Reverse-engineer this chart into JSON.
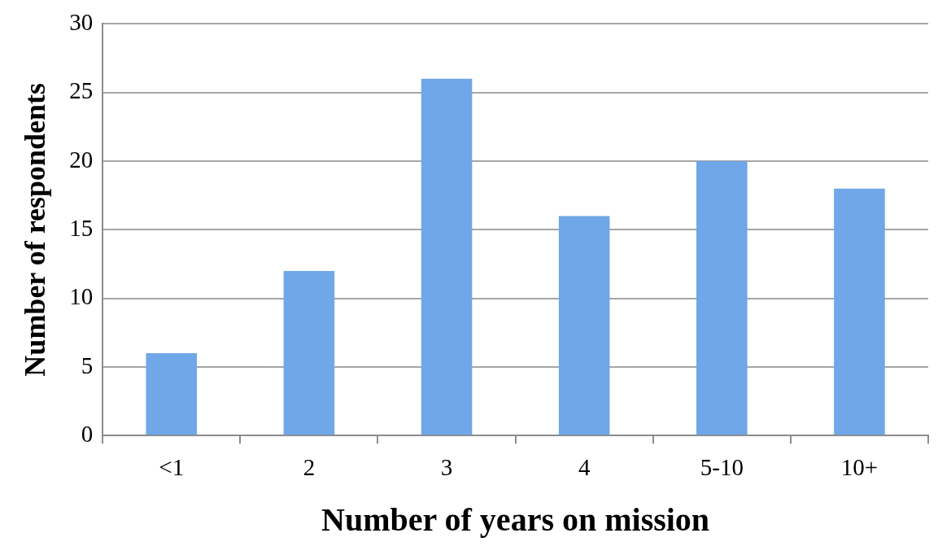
{
  "chart_data": {
    "type": "bar",
    "xlabel": "Number of years on mission",
    "ylabel": "Number of respondents",
    "categories": [
      "<1",
      "2",
      "3",
      "4",
      "5-10",
      "10+"
    ],
    "values": [
      6,
      12,
      26,
      16,
      20,
      18
    ],
    "color": "#6fa7e8",
    "ylim": [
      0,
      30
    ],
    "yticks": [
      0,
      5,
      10,
      15,
      20,
      25,
      30
    ],
    "grid": "y",
    "legend": false
  }
}
